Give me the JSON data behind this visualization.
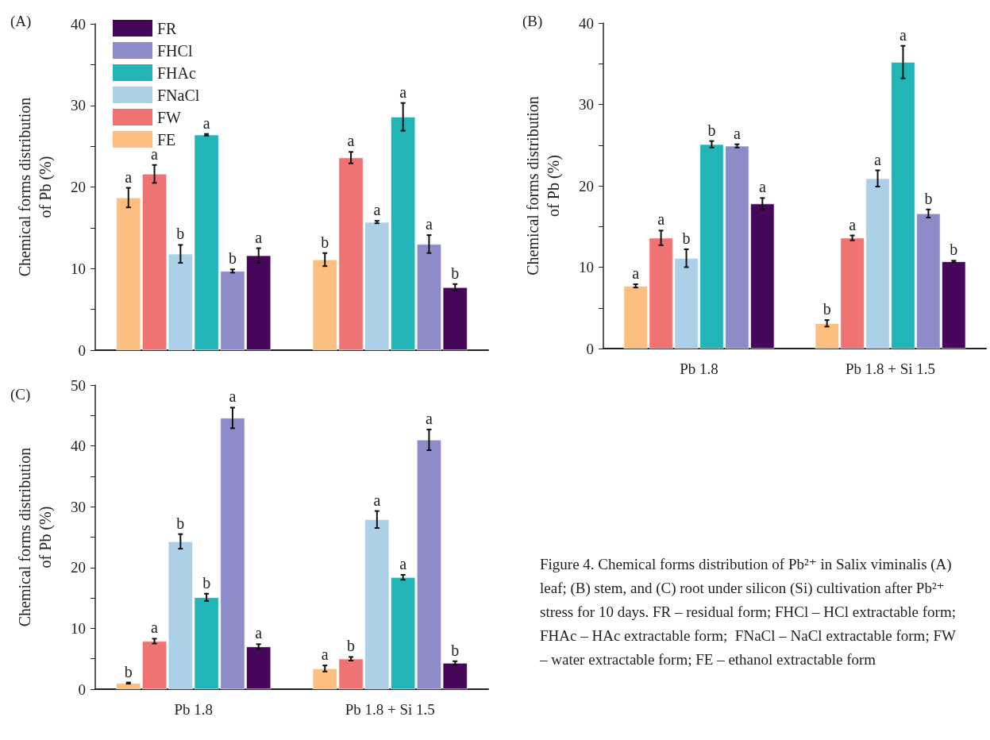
{
  "chart_data": [
    {
      "type": "bar",
      "title": "(A)",
      "ylabel": "Chemical forms distribution of Pb (%)",
      "categories": [
        null,
        null
      ],
      "legend": "top left",
      "ylim": [
        0,
        40
      ],
      "yticks": [
        0,
        {
          "value": 5,
          "label": null
        },
        10,
        {
          "value": 15,
          "label": null
        },
        20,
        {
          "value": 25,
          "label": null
        },
        30,
        {
          "value": 35,
          "label": null
        },
        40
      ],
      "series": [
        {
          "name": "FE",
          "color": "#fdbf7f",
          "values": [
            18.7,
            11.1
          ],
          "errors": [
            1.2,
            0.8
          ],
          "value_labels": [
            "a",
            "b"
          ]
        },
        {
          "name": "FW",
          "color": "#ef7373",
          "values": [
            21.6,
            23.6
          ],
          "errors": [
            1.1,
            0.7
          ],
          "value_labels": [
            "a",
            "a"
          ]
        },
        {
          "name": "FNaCl",
          "color": "#abd0e8",
          "values": [
            11.8,
            15.7
          ],
          "errors": [
            1.1,
            0.15
          ],
          "value_labels": [
            "b",
            "a"
          ]
        },
        {
          "name": "FHAc",
          "color": "#21b5b8",
          "values": [
            26.4,
            28.6
          ],
          "errors": [
            0.1,
            1.7
          ],
          "value_labels": [
            "a",
            "a"
          ]
        },
        {
          "name": "FHCl",
          "color": "#8e8cc8",
          "values": [
            9.7,
            13.0
          ],
          "errors": [
            0.2,
            1.1
          ],
          "value_labels": [
            "b",
            "a"
          ]
        },
        {
          "name": "FR",
          "color": "#46075a",
          "values": [
            11.6,
            7.7
          ],
          "errors": [
            0.9,
            0.4
          ],
          "value_labels": [
            "a",
            "b"
          ]
        }
      ]
    },
    {
      "type": "bar",
      "title": "(B)",
      "ylabel": "Chemical forms distribution of Pb (%)",
      "categories": [
        "Pb 1.8",
        "Pb 1.8 + Si 1.5"
      ],
      "ylim": [
        0,
        40
      ],
      "yticks": [
        0,
        {
          "value": 5,
          "label": null
        },
        10,
        {
          "value": 15,
          "label": null
        },
        20,
        {
          "value": 25,
          "label": null
        },
        30,
        {
          "value": 35,
          "label": null
        },
        40
      ],
      "series": [
        {
          "color": "#fdbf7f",
          "values": [
            7.7,
            3.1
          ],
          "errors": [
            0.2,
            0.4
          ],
          "value_labels": [
            "a",
            "b"
          ]
        },
        {
          "color": "#ef7373",
          "values": [
            13.6,
            13.6
          ],
          "errors": [
            0.9,
            0.3
          ],
          "value_labels": [
            "a",
            "a"
          ]
        },
        {
          "color": "#abd0e8",
          "values": [
            11.1,
            20.9
          ],
          "errors": [
            1.1,
            1.0
          ],
          "value_labels": [
            "b",
            "a"
          ]
        },
        {
          "color": "#21b5b8",
          "values": [
            25.1,
            35.2
          ],
          "errors": [
            0.4,
            2.0
          ],
          "value_labels": [
            "b",
            "a"
          ]
        },
        {
          "color": "#8e8cc8",
          "values": [
            24.9,
            16.6
          ],
          "errors": [
            0.2,
            0.5
          ],
          "value_labels": [
            "a",
            "b"
          ]
        },
        {
          "color": "#46075a",
          "values": [
            17.8,
            10.7
          ],
          "errors": [
            0.7,
            0.1
          ],
          "value_labels": [
            "a",
            "b"
          ]
        }
      ]
    },
    {
      "type": "bar",
      "title": "(C)",
      "ylabel": "Chemical forms distribution of Pb (%)",
      "categories": [
        "Pb 1.8",
        "Pb 1.8 + Si 1.5"
      ],
      "ylim": [
        0,
        50
      ],
      "yticks": [
        0,
        {
          "value": 5,
          "label": null
        },
        10,
        {
          "value": 15,
          "label": null
        },
        20,
        {
          "value": 25,
          "label": null
        },
        30,
        {
          "value": 35,
          "label": null
        },
        40,
        {
          "value": 45,
          "label": null
        },
        50
      ],
      "annotations": [
        "Figure 4. Chemical forms distribution of Pb²⁺ in Salix viminalis (A) leaf; (B) stem, and (C) root under silicon (Si) cultivation after Pb²⁺ stress for 10 days. FR – residual form; FHCl – HCl extractable form; FHAc – HAc extractable form;  FNaCl – NaCl extractable form; FW – water extractable form; FE – ethanol extractable form"
      ],
      "series": [
        {
          "color": "#fdbf7f",
          "values": [
            1.0,
            3.4
          ],
          "errors": [
            0.1,
            0.5
          ],
          "value_labels": [
            "b",
            "a"
          ]
        },
        {
          "color": "#ef7373",
          "values": [
            7.9,
            5.0
          ],
          "errors": [
            0.4,
            0.3
          ],
          "value_labels": [
            "a",
            "b"
          ]
        },
        {
          "color": "#abd0e8",
          "values": [
            24.3,
            27.9
          ],
          "errors": [
            1.2,
            1.4
          ],
          "value_labels": [
            "b",
            "a"
          ]
        },
        {
          "color": "#21b5b8",
          "values": [
            15.1,
            18.4
          ],
          "errors": [
            0.6,
            0.4
          ],
          "value_labels": [
            "b",
            "a"
          ]
        },
        {
          "color": "#8e8cc8",
          "values": [
            44.6,
            41.0
          ],
          "errors": [
            1.7,
            1.7
          ],
          "value_labels": [
            "a",
            "a"
          ]
        },
        {
          "color": "#46075a",
          "values": [
            7.0,
            4.3
          ],
          "errors": [
            0.4,
            0.3
          ],
          "value_labels": [
            "a",
            "b"
          ]
        }
      ]
    }
  ]
}
